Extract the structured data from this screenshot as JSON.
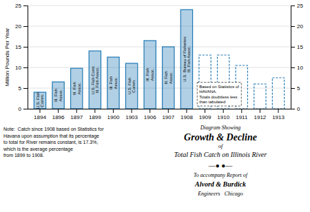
{
  "chart_data": {
    "type": "bar",
    "title": [
      "Diagram Showing",
      "Growth & Decline",
      "of",
      "Total Fish Catch on Illinois River"
    ],
    "subtitle": [
      "—● ●—",
      "To accompany Report of",
      "Alvord & Burdick",
      "Engineers   Chicago"
    ],
    "y_label": "Million Pounds Per Year",
    "categories": [
      "1894",
      "1896",
      "1897",
      "1899",
      "1900",
      "1903",
      "1906",
      "1907",
      "1908",
      "1909",
      "1910",
      "1911",
      "1912",
      "1913"
    ],
    "values": [
      4.0,
      6.5,
      9.8,
      14.0,
      12.5,
      11.0,
      16.5,
      15.0,
      24.0,
      13.0,
      13.0,
      10.5,
      6.0,
      7.5
    ],
    "line_style": [
      "solid",
      "solid",
      "solid",
      "solid",
      "solid",
      "solid",
      "solid",
      "solid",
      "solid",
      "dashed",
      "dashed",
      "dashed",
      "dashed",
      "dashed"
    ],
    "bar_labels": [
      "U.S. Fish\nComm.",
      "Ill. Fish\nAssoc.",
      "Ill. Fish\nAssoc.",
      "U.S. Fish Comr.\nIll. Fish Assoc.",
      "Ill. Fish\nAssoc.",
      "U.S. Fish\nComm.",
      "Ill. Fish\nAssoc.",
      "Ill. Fish\nAssoc.",
      "U.S. Bureau of Fisheries\nIll. Fish Assoc.",
      null,
      null,
      null,
      null,
      null
    ],
    "annotations": [
      {
        "text": "Based on Statistics of\nHAVANA.\nTotals doubtless less\nthan tabulated"
      },
      {
        "text": "Note:  Catch since 1908 based on Statistics for\nHavana upon assumption that its percentage\nto total for River remains constant, is 17.3%,\nwhich is the average percentage\nfrom 1899 to 1908."
      }
    ],
    "ylim": [
      0,
      25
    ],
    "yticks": [
      0,
      5,
      10,
      15,
      20,
      25
    ],
    "y2lim": [
      0,
      25
    ],
    "y2ticks": [
      0,
      5,
      10,
      15,
      20,
      25
    ],
    "grid": true
  }
}
